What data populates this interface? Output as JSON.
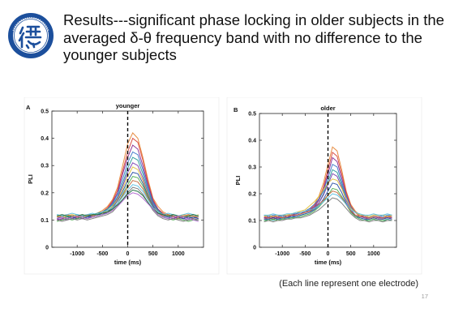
{
  "slide": {
    "title": "Results---significant phase locking in older subjects in the averaged δ-θ frequency band with no difference to the younger subjects",
    "caption": "(Each line represent one electrode)",
    "page_number": "17"
  },
  "colors": {
    "title": "#111111",
    "logo_blue": "#1c4f9c",
    "curves": [
      "#e6873a",
      "#d9473b",
      "#8a2a8f",
      "#3d77c9",
      "#2c9c9a",
      "#7b3fb0",
      "#e0c03c",
      "#2a4fa3",
      "#4fae52",
      "#c2693c",
      "#5bc0e0",
      "#7a7a7a",
      "#1b6e3f",
      "#b06ad0",
      "#f0a34a",
      "#27346e",
      "#9ccf57",
      "#3aa0d8"
    ]
  },
  "chart_data": [
    {
      "type": "line",
      "panel_label": "A",
      "title": "younger",
      "xlabel": "time (ms)",
      "ylabel": "PLI",
      "xlim": [
        -1500,
        1500
      ],
      "ylim": [
        0,
        0.5
      ],
      "xticks": [
        -1000,
        -500,
        0,
        500,
        1000
      ],
      "yticks": [
        0,
        0.1,
        0.2,
        0.3,
        0.4,
        0.5
      ],
      "x": [
        -1400,
        -1300,
        -1200,
        -1100,
        -1000,
        -900,
        -800,
        -700,
        -600,
        -500,
        -400,
        -300,
        -200,
        -100,
        0,
        100,
        200,
        300,
        400,
        500,
        600,
        700,
        800,
        900,
        1000,
        1100,
        1200,
        1300,
        1400
      ],
      "marker_x": 0,
      "series": [
        {
          "values": [
            0.11,
            0.115,
            0.11,
            0.115,
            0.11,
            0.12,
            0.115,
            0.12,
            0.125,
            0.135,
            0.15,
            0.175,
            0.22,
            0.3,
            0.38,
            0.42,
            0.4,
            0.33,
            0.25,
            0.18,
            0.15,
            0.13,
            0.12,
            0.115,
            0.11,
            0.12,
            0.115,
            0.11,
            0.11
          ]
        },
        {
          "values": [
            0.1,
            0.105,
            0.11,
            0.11,
            0.105,
            0.11,
            0.115,
            0.115,
            0.12,
            0.13,
            0.145,
            0.17,
            0.21,
            0.28,
            0.35,
            0.4,
            0.385,
            0.32,
            0.24,
            0.175,
            0.14,
            0.125,
            0.115,
            0.11,
            0.105,
            0.11,
            0.11,
            0.105,
            0.1
          ]
        },
        {
          "values": [
            0.105,
            0.1,
            0.105,
            0.11,
            0.11,
            0.105,
            0.11,
            0.115,
            0.12,
            0.125,
            0.14,
            0.165,
            0.2,
            0.27,
            0.33,
            0.375,
            0.36,
            0.3,
            0.23,
            0.17,
            0.14,
            0.12,
            0.115,
            0.11,
            0.11,
            0.105,
            0.11,
            0.11,
            0.105
          ]
        },
        {
          "values": [
            0.11,
            0.11,
            0.115,
            0.105,
            0.11,
            0.115,
            0.11,
            0.12,
            0.12,
            0.13,
            0.14,
            0.16,
            0.195,
            0.25,
            0.31,
            0.35,
            0.34,
            0.285,
            0.22,
            0.165,
            0.135,
            0.12,
            0.115,
            0.11,
            0.115,
            0.11,
            0.105,
            0.11,
            0.11
          ]
        },
        {
          "values": [
            0.12,
            0.115,
            0.11,
            0.115,
            0.12,
            0.115,
            0.12,
            0.12,
            0.125,
            0.13,
            0.14,
            0.155,
            0.185,
            0.235,
            0.29,
            0.33,
            0.32,
            0.27,
            0.21,
            0.16,
            0.135,
            0.12,
            0.115,
            0.12,
            0.115,
            0.11,
            0.115,
            0.12,
            0.115
          ]
        },
        {
          "values": [
            0.1,
            0.105,
            0.1,
            0.105,
            0.11,
            0.105,
            0.11,
            0.11,
            0.115,
            0.12,
            0.13,
            0.15,
            0.18,
            0.225,
            0.275,
            0.31,
            0.3,
            0.255,
            0.2,
            0.155,
            0.13,
            0.115,
            0.11,
            0.105,
            0.11,
            0.105,
            0.1,
            0.105,
            0.1
          ]
        },
        {
          "values": [
            0.115,
            0.11,
            0.115,
            0.12,
            0.115,
            0.11,
            0.115,
            0.12,
            0.12,
            0.125,
            0.135,
            0.15,
            0.175,
            0.215,
            0.26,
            0.295,
            0.285,
            0.245,
            0.195,
            0.15,
            0.13,
            0.12,
            0.115,
            0.11,
            0.115,
            0.12,
            0.115,
            0.11,
            0.12
          ]
        },
        {
          "values": [
            0.105,
            0.11,
            0.105,
            0.11,
            0.105,
            0.11,
            0.11,
            0.115,
            0.12,
            0.12,
            0.13,
            0.145,
            0.17,
            0.205,
            0.245,
            0.275,
            0.27,
            0.235,
            0.19,
            0.15,
            0.125,
            0.115,
            0.11,
            0.115,
            0.11,
            0.105,
            0.11,
            0.11,
            0.105
          ]
        },
        {
          "values": [
            0.095,
            0.1,
            0.105,
            0.1,
            0.105,
            0.11,
            0.105,
            0.11,
            0.115,
            0.12,
            0.125,
            0.14,
            0.16,
            0.195,
            0.23,
            0.26,
            0.255,
            0.225,
            0.185,
            0.145,
            0.12,
            0.11,
            0.105,
            0.1,
            0.105,
            0.1,
            0.095,
            0.1,
            0.1
          ]
        },
        {
          "values": [
            0.11,
            0.115,
            0.12,
            0.115,
            0.11,
            0.115,
            0.12,
            0.115,
            0.12,
            0.125,
            0.13,
            0.14,
            0.16,
            0.19,
            0.22,
            0.245,
            0.24,
            0.215,
            0.18,
            0.145,
            0.125,
            0.115,
            0.12,
            0.115,
            0.11,
            0.115,
            0.12,
            0.115,
            0.11
          ]
        },
        {
          "values": [
            0.12,
            0.115,
            0.12,
            0.125,
            0.12,
            0.115,
            0.12,
            0.125,
            0.12,
            0.13,
            0.135,
            0.145,
            0.16,
            0.185,
            0.21,
            0.23,
            0.225,
            0.205,
            0.175,
            0.145,
            0.13,
            0.12,
            0.125,
            0.12,
            0.115,
            0.12,
            0.125,
            0.12,
            0.115
          ]
        },
        {
          "values": [
            0.1,
            0.095,
            0.1,
            0.105,
            0.1,
            0.105,
            0.1,
            0.105,
            0.11,
            0.115,
            0.12,
            0.13,
            0.15,
            0.175,
            0.2,
            0.22,
            0.215,
            0.195,
            0.165,
            0.135,
            0.115,
            0.105,
            0.1,
            0.105,
            0.1,
            0.095,
            0.1,
            0.105,
            0.1
          ]
        },
        {
          "values": [
            0.115,
            0.12,
            0.115,
            0.11,
            0.115,
            0.12,
            0.115,
            0.12,
            0.12,
            0.125,
            0.13,
            0.14,
            0.155,
            0.175,
            0.195,
            0.21,
            0.205,
            0.19,
            0.165,
            0.14,
            0.125,
            0.12,
            0.115,
            0.12,
            0.115,
            0.11,
            0.115,
            0.12,
            0.115
          ]
        },
        {
          "values": [
            0.105,
            0.11,
            0.105,
            0.11,
            0.115,
            0.11,
            0.105,
            0.11,
            0.115,
            0.12,
            0.125,
            0.135,
            0.15,
            0.17,
            0.19,
            0.2,
            0.195,
            0.18,
            0.16,
            0.14,
            0.12,
            0.11,
            0.105,
            0.11,
            0.115,
            0.11,
            0.105,
            0.1,
            0.095
          ]
        }
      ]
    },
    {
      "type": "line",
      "panel_label": "B",
      "title": "older",
      "xlabel": "time (ms)",
      "ylabel": "PLI",
      "xlim": [
        -1500,
        1500
      ],
      "ylim": [
        0,
        0.5
      ],
      "xticks": [
        -1000,
        -500,
        0,
        500,
        1000
      ],
      "yticks": [
        0,
        0.1,
        0.2,
        0.3,
        0.4,
        0.5
      ],
      "x": [
        -1400,
        -1300,
        -1200,
        -1100,
        -1000,
        -900,
        -800,
        -700,
        -600,
        -500,
        -400,
        -300,
        -200,
        -100,
        0,
        100,
        200,
        300,
        400,
        500,
        600,
        700,
        800,
        900,
        1000,
        1100,
        1200,
        1300,
        1400
      ],
      "marker_x": 0,
      "series": [
        {
          "values": [
            0.11,
            0.11,
            0.115,
            0.11,
            0.115,
            0.12,
            0.12,
            0.125,
            0.13,
            0.135,
            0.145,
            0.16,
            0.19,
            0.24,
            0.31,
            0.375,
            0.36,
            0.29,
            0.21,
            0.16,
            0.135,
            0.12,
            0.115,
            0.11,
            0.115,
            0.11,
            0.11,
            0.115,
            0.11
          ]
        },
        {
          "values": [
            0.105,
            0.11,
            0.105,
            0.11,
            0.11,
            0.115,
            0.12,
            0.12,
            0.125,
            0.13,
            0.14,
            0.155,
            0.18,
            0.225,
            0.29,
            0.355,
            0.34,
            0.275,
            0.205,
            0.155,
            0.13,
            0.115,
            0.11,
            0.105,
            0.11,
            0.105,
            0.105,
            0.11,
            0.105
          ]
        },
        {
          "values": [
            0.11,
            0.115,
            0.11,
            0.115,
            0.12,
            0.115,
            0.12,
            0.125,
            0.13,
            0.13,
            0.14,
            0.15,
            0.175,
            0.215,
            0.275,
            0.335,
            0.32,
            0.26,
            0.195,
            0.15,
            0.13,
            0.12,
            0.115,
            0.11,
            0.115,
            0.115,
            0.11,
            0.115,
            0.115
          ]
        },
        {
          "values": [
            0.12,
            0.115,
            0.12,
            0.12,
            0.115,
            0.12,
            0.125,
            0.125,
            0.13,
            0.135,
            0.145,
            0.16,
            0.18,
            0.21,
            0.26,
            0.31,
            0.3,
            0.245,
            0.19,
            0.15,
            0.13,
            0.12,
            0.12,
            0.115,
            0.12,
            0.12,
            0.115,
            0.12,
            0.12
          ]
        },
        {
          "values": [
            0.1,
            0.105,
            0.1,
            0.105,
            0.105,
            0.11,
            0.11,
            0.115,
            0.12,
            0.125,
            0.13,
            0.145,
            0.165,
            0.2,
            0.245,
            0.29,
            0.28,
            0.235,
            0.18,
            0.14,
            0.12,
            0.11,
            0.105,
            0.1,
            0.105,
            0.1,
            0.1,
            0.105,
            0.1
          ]
        },
        {
          "values": [
            0.11,
            0.11,
            0.115,
            0.11,
            0.11,
            0.115,
            0.115,
            0.12,
            0.125,
            0.13,
            0.135,
            0.15,
            0.165,
            0.195,
            0.235,
            0.275,
            0.265,
            0.225,
            0.175,
            0.14,
            0.12,
            0.115,
            0.11,
            0.11,
            0.115,
            0.11,
            0.11,
            0.11,
            0.11
          ]
        },
        {
          "values": [
            0.115,
            0.12,
            0.115,
            0.12,
            0.12,
            0.12,
            0.125,
            0.13,
            0.135,
            0.14,
            0.155,
            0.17,
            0.19,
            0.215,
            0.24,
            0.255,
            0.25,
            0.22,
            0.18,
            0.145,
            0.13,
            0.12,
            0.12,
            0.115,
            0.12,
            0.12,
            0.12,
            0.115,
            0.12
          ]
        },
        {
          "values": [
            0.105,
            0.105,
            0.11,
            0.105,
            0.11,
            0.11,
            0.115,
            0.115,
            0.12,
            0.125,
            0.13,
            0.14,
            0.155,
            0.18,
            0.21,
            0.24,
            0.235,
            0.205,
            0.165,
            0.135,
            0.115,
            0.11,
            0.105,
            0.105,
            0.11,
            0.105,
            0.105,
            0.11,
            0.105
          ]
        },
        {
          "values": [
            0.1,
            0.1,
            0.105,
            0.1,
            0.105,
            0.105,
            0.11,
            0.11,
            0.115,
            0.12,
            0.125,
            0.135,
            0.15,
            0.17,
            0.195,
            0.22,
            0.215,
            0.19,
            0.16,
            0.13,
            0.115,
            0.105,
            0.1,
            0.1,
            0.105,
            0.1,
            0.1,
            0.1,
            0.1
          ]
        },
        {
          "values": [
            0.115,
            0.11,
            0.115,
            0.115,
            0.11,
            0.115,
            0.12,
            0.12,
            0.125,
            0.13,
            0.135,
            0.145,
            0.16,
            0.175,
            0.195,
            0.21,
            0.205,
            0.185,
            0.16,
            0.135,
            0.12,
            0.115,
            0.115,
            0.11,
            0.115,
            0.115,
            0.11,
            0.115,
            0.115
          ]
        },
        {
          "values": [
            0.12,
            0.12,
            0.125,
            0.12,
            0.12,
            0.125,
            0.125,
            0.13,
            0.13,
            0.135,
            0.14,
            0.145,
            0.155,
            0.17,
            0.185,
            0.2,
            0.195,
            0.18,
            0.16,
            0.14,
            0.13,
            0.125,
            0.12,
            0.12,
            0.125,
            0.12,
            0.12,
            0.125,
            0.12
          ]
        },
        {
          "values": [
            0.095,
            0.1,
            0.095,
            0.1,
            0.1,
            0.105,
            0.105,
            0.11,
            0.11,
            0.115,
            0.12,
            0.13,
            0.14,
            0.155,
            0.17,
            0.185,
            0.18,
            0.165,
            0.145,
            0.125,
            0.11,
            0.1,
            0.1,
            0.095,
            0.1,
            0.1,
            0.095,
            0.1,
            0.1
          ]
        }
      ]
    }
  ]
}
